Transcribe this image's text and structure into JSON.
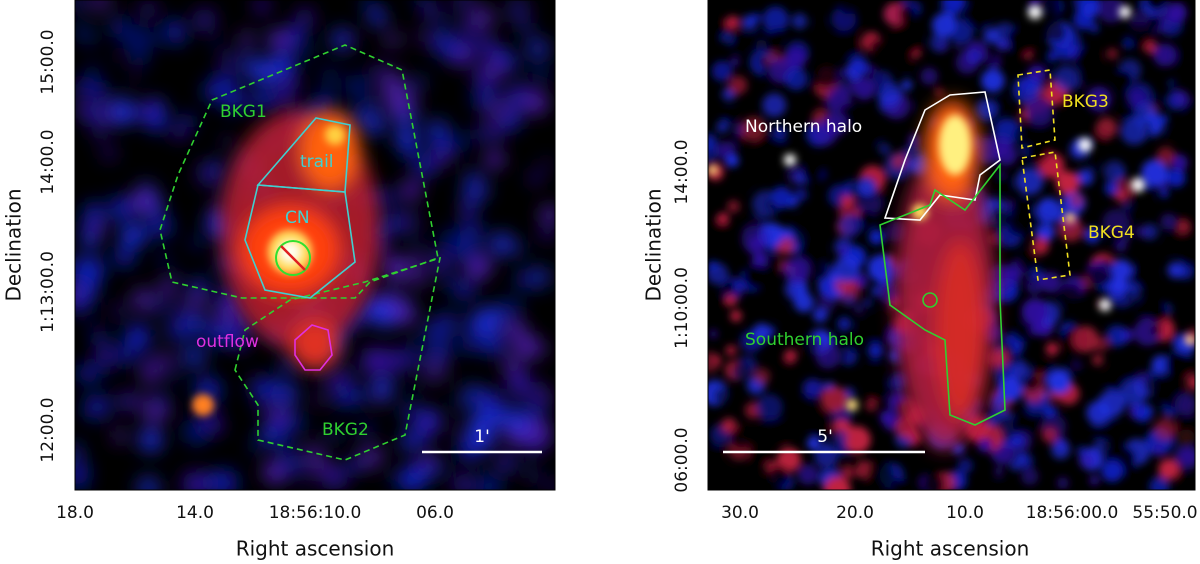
{
  "panels": [
    {
      "yticks": [
        "15:00.0",
        "14:00.0",
        "1:13:00.0",
        "12:00.0"
      ],
      "xticks": [
        "18.0",
        "14.0",
        "18:56:10.0",
        "06.0"
      ],
      "xlabel": "Right ascension",
      "ylabel": "Declination",
      "regions": [
        "BKG1",
        "trail",
        "CN",
        "outflow",
        "BKG2"
      ],
      "scale_bar": "1'"
    },
    {
      "yticks": [
        "14:00.0",
        "1:10:00.0",
        "06:00.0"
      ],
      "xticks": [
        "30.0",
        "20.0",
        "10.0",
        "18:56:00.0",
        "55:50.0"
      ],
      "xlabel": "Right ascension",
      "ylabel": "Declination",
      "regions": [
        "Northern halo",
        "BKG3",
        "BKG4",
        "Southern halo"
      ],
      "scale_bar": "5'"
    }
  ]
}
